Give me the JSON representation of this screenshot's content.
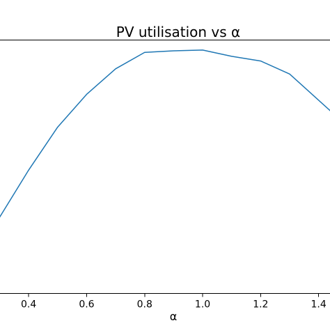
{
  "chart_data": {
    "type": "line",
    "title": "PV utilisation vs α",
    "xlabel": "α",
    "ylabel": "",
    "xlim": [
      0.3,
      1.45
    ],
    "ylim": [
      0.0,
      1.0
    ],
    "x_ticks": [
      0.4,
      0.6,
      0.8,
      1.0,
      1.2,
      1.4
    ],
    "x_tick_labels": [
      "0.4",
      "0.6",
      "0.8",
      "1.0",
      "1.2",
      "1.4"
    ],
    "grid": false,
    "series": [
      {
        "color": "#1f77b4",
        "x": [
          0.3,
          0.4,
          0.5,
          0.6,
          0.7,
          0.8,
          0.9,
          1.0,
          1.1,
          1.2,
          1.3,
          1.45
        ],
        "values": [
          0.361,
          0.542,
          0.707,
          0.833,
          0.931,
          0.994,
          1.0,
          1.003,
          0.979,
          0.961,
          0.911,
          0.76
        ]
      }
    ]
  }
}
